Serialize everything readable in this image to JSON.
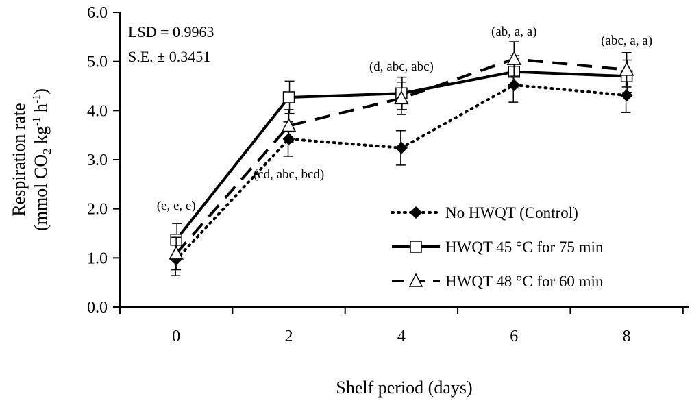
{
  "chart_data": {
    "type": "line",
    "xlabel": "Shelf period (days)",
    "ylabel": {
      "line1": "Respiration  rate",
      "line2_prefix": "(mmol  CO",
      "line2_sub": "2",
      "line2_mid": " kg",
      "line2_sup1": "-1",
      "line2_mid2": " h",
      "line2_sup2": "-1",
      "line2_suffix": ")"
    },
    "x": [
      0,
      2,
      4,
      6,
      8
    ],
    "x_tick_labels": [
      "0",
      "2",
      "4",
      "6",
      "8"
    ],
    "ylim": [
      0,
      6
    ],
    "y_tick_labels": [
      "0.0",
      "1.0",
      "2.0",
      "3.0",
      "4.0",
      "5.0",
      "6.0"
    ],
    "grid": false,
    "legend_position": "bottom-right",
    "stats": [
      "LSD = 0.9963",
      "S.E. ± 0.3451"
    ],
    "series": [
      {
        "name": "No HWQT (Control)",
        "values": [
          0.97,
          3.42,
          3.24,
          4.52,
          4.31
        ],
        "errors": [
          0.33,
          0.35,
          0.35,
          0.35,
          0.35
        ],
        "line_style": "dotted",
        "marker": "diamond"
      },
      {
        "name": "HWQT 45 °C for 75 min",
        "values": [
          1.37,
          4.27,
          4.35,
          4.79,
          4.7
        ],
        "errors": [
          0.33,
          0.33,
          0.33,
          0.33,
          0.33
        ],
        "line_style": "solid",
        "marker": "square"
      },
      {
        "name": "HWQT 48 °C for 60 min",
        "values": [
          1.09,
          3.69,
          4.25,
          5.05,
          4.83
        ],
        "errors": [
          0.33,
          0.33,
          0.33,
          0.35,
          0.35
        ],
        "line_style": "dashed",
        "marker": "triangle"
      }
    ],
    "annotations": [
      {
        "x": 0,
        "text": "(e, e, e)"
      },
      {
        "x": 2,
        "text": "(cd, abc, bcd)"
      },
      {
        "x": 4,
        "text": "(d, abc, abc)"
      },
      {
        "x": 6,
        "text": "(ab, a, a)"
      },
      {
        "x": 8,
        "text": "(abc, a, a)"
      }
    ]
  }
}
